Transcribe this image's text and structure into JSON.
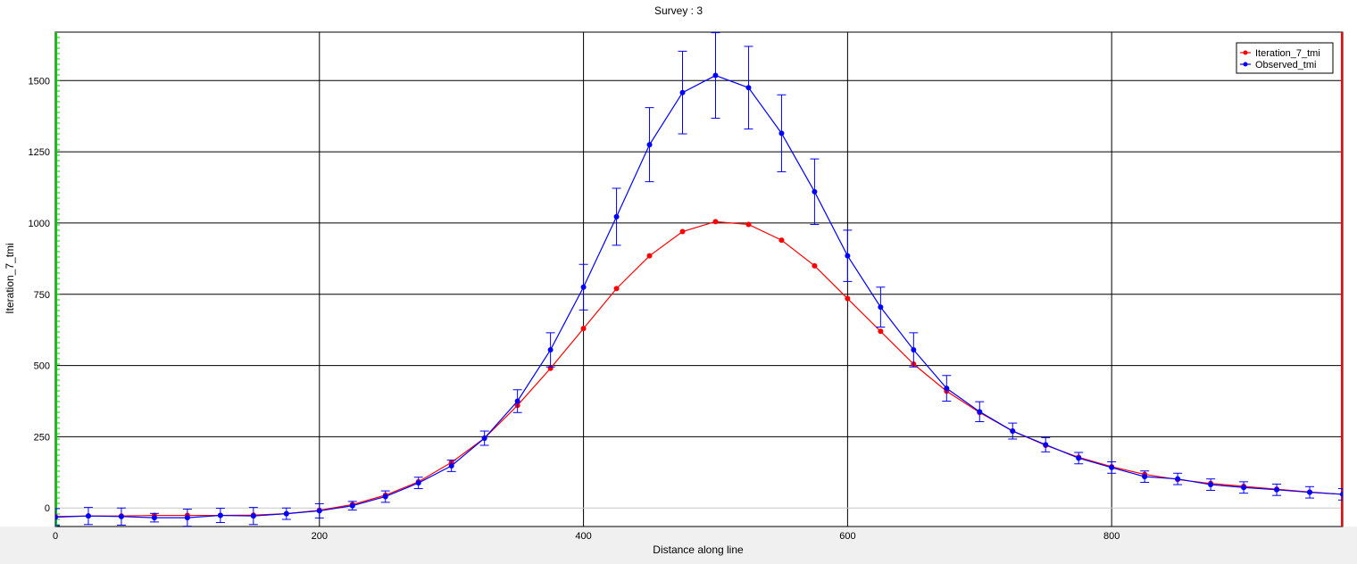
{
  "chart_data": {
    "type": "line",
    "title": "Survey : 3",
    "xlabel": "Distance along line",
    "ylabel": "Iteration_7_tmi",
    "xlim": [
      0,
      975
    ],
    "ylim": [
      -65,
      1670
    ],
    "xticks": [
      0,
      200,
      400,
      600,
      800
    ],
    "yticks": [
      0,
      250,
      500,
      750,
      1000,
      1250,
      1500
    ],
    "grid": true,
    "legend_position": "top-right",
    "x": [
      0,
      25,
      50,
      75,
      100,
      125,
      150,
      175,
      200,
      225,
      250,
      275,
      300,
      325,
      350,
      375,
      400,
      425,
      450,
      475,
      500,
      525,
      550,
      575,
      600,
      625,
      650,
      675,
      700,
      725,
      750,
      775,
      800,
      825,
      850,
      875,
      900,
      925,
      950,
      975
    ],
    "series": [
      {
        "name": "Iteration_7_tmi",
        "color": "#ff0000",
        "values": [
          -30,
          -28,
          -28,
          -26,
          -26,
          -26,
          -25,
          -20,
          -8,
          12,
          45,
          92,
          160,
          245,
          360,
          490,
          630,
          770,
          885,
          970,
          1005,
          995,
          940,
          850,
          735,
          620,
          505,
          410,
          335,
          270,
          220,
          178,
          145,
          118,
          100,
          86,
          76,
          66,
          56,
          48
        ]
      },
      {
        "name": "Observed_tmi",
        "color": "#0000ff",
        "values": [
          -32,
          -28,
          -30,
          -34,
          -34,
          -26,
          -28,
          -20,
          -10,
          8,
          40,
          88,
          148,
          245,
          375,
          555,
          775,
          1022,
          1275,
          1458,
          1518,
          1475,
          1315,
          1110,
          885,
          705,
          555,
          420,
          338,
          270,
          222,
          175,
          142,
          110,
          102,
          82,
          72,
          64,
          55,
          48
        ],
        "error": [
          30,
          30,
          30,
          15,
          30,
          25,
          30,
          20,
          25,
          15,
          20,
          20,
          20,
          25,
          40,
          60,
          80,
          100,
          130,
          145,
          150,
          145,
          135,
          115,
          90,
          70,
          60,
          45,
          35,
          28,
          25,
          20,
          20,
          20,
          20,
          20,
          20,
          20,
          20,
          20
        ]
      }
    ]
  }
}
